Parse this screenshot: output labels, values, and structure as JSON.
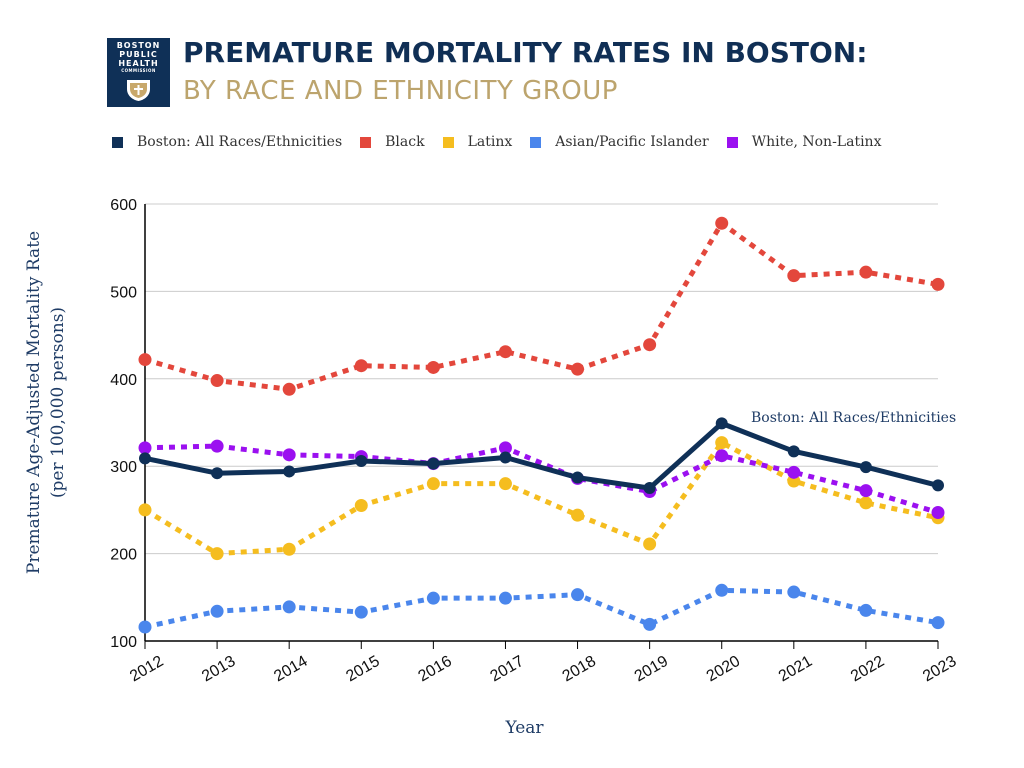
{
  "header": {
    "title": "PREMATURE MORTALITY RATES IN BOSTON:",
    "subtitle": "BY RACE AND ETHNICITY GROUP",
    "logo_lines": [
      "BOSTON",
      "PUBLIC",
      "HEALTH",
      "COMMISSION"
    ]
  },
  "colors": {
    "title": "#102f55",
    "subtitle": "#bca46d",
    "grid": "#cccccc"
  },
  "chart_data": {
    "type": "line",
    "title": "PREMATURE MORTALITY RATES IN BOSTON: BY RACE AND ETHNICITY GROUP",
    "xlabel": "Year",
    "ylabel": "Premature Age-Adjusted Mortality Rate",
    "ylabel2": "(per 100,000 persons)",
    "ylim": [
      100,
      600
    ],
    "yticks": [
      100,
      200,
      300,
      400,
      500,
      600
    ],
    "grid": true,
    "legend_position": "top",
    "x": [
      "2012",
      "2013",
      "2014",
      "2015",
      "2016",
      "2017",
      "2018",
      "2019",
      "2020",
      "2021",
      "2022",
      "2023"
    ],
    "annotation": "Boston: All Races/Ethnicities",
    "series": [
      {
        "name": "Boston: All Races/Ethnicities",
        "color": "#0f3057",
        "style": "solid",
        "values": [
          309,
          292,
          294,
          306,
          303,
          310,
          287,
          275,
          349,
          317,
          299,
          278
        ]
      },
      {
        "name": "Black",
        "color": "#e3473c",
        "style": "dotted",
        "values": [
          422,
          398,
          388,
          415,
          413,
          431,
          411,
          439,
          578,
          518,
          522,
          508
        ]
      },
      {
        "name": "Latinx",
        "color": "#f5bd1f",
        "style": "dotted",
        "values": [
          250,
          200,
          205,
          255,
          280,
          280,
          244,
          211,
          327,
          283,
          258,
          241
        ]
      },
      {
        "name": "Asian/Pacific Islander",
        "color": "#4a86ec",
        "style": "dotted",
        "values": [
          116,
          134,
          139,
          133,
          149,
          149,
          153,
          119,
          158,
          156,
          135,
          121
        ]
      },
      {
        "name": "White, Non-Latinx",
        "color": "#9b10f0",
        "style": "dotted",
        "values": [
          321,
          323,
          313,
          311,
          303,
          321,
          286,
          271,
          312,
          293,
          272,
          247
        ]
      }
    ]
  }
}
